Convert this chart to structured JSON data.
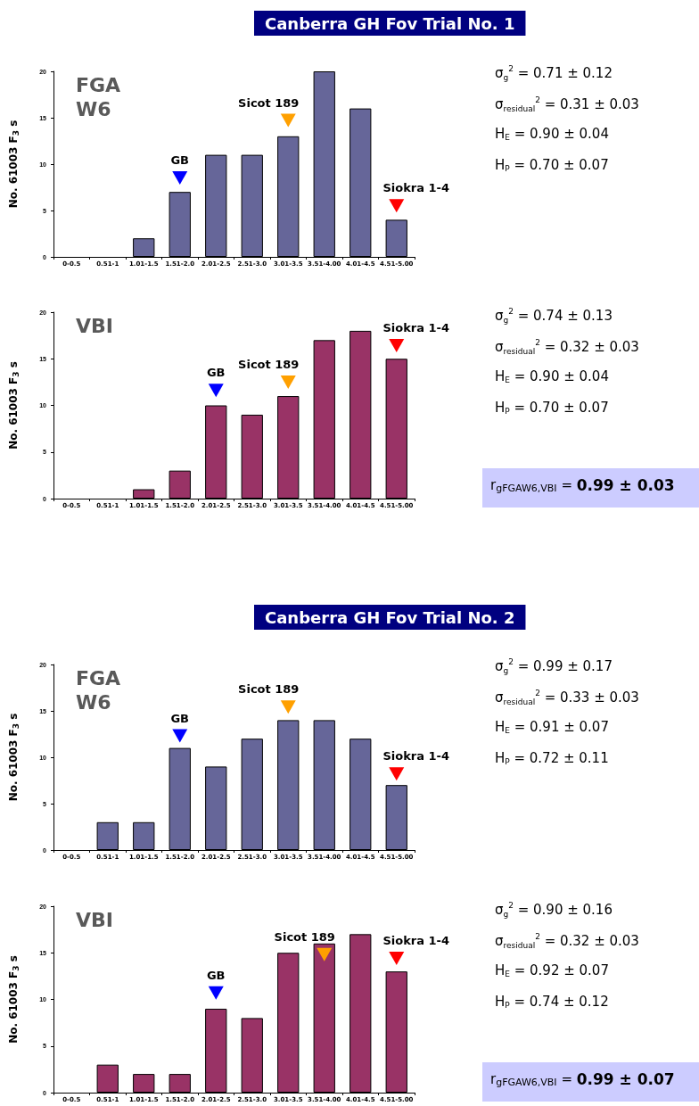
{
  "chart_data": [
    {
      "type": "bar",
      "title": "Canberra GH Fov Trial No. 1",
      "ylabel": "No. 61003 F$_{3}$ s",
      "categories": [
        "0-0.5",
        "0.51-1",
        "1.01-1.5",
        "1.51-2.0",
        "2.01-2.5",
        "2.51-3.0",
        "3.01-3.5",
        "3.51-4.00",
        "4.01-4.5",
        "4.51-5.00"
      ],
      "series": [
        {
          "name": "FGA W6",
          "color": "#666699",
          "values": [
            0,
            0,
            2,
            7,
            11,
            11,
            13,
            20,
            16,
            4
          ]
        }
      ],
      "ylim": [
        0,
        20
      ],
      "yticks": [
        0,
        5,
        10,
        15,
        20
      ],
      "grid": false,
      "legend": false,
      "annotations": [
        {
          "text": "GB",
          "x": "1.51-2.0",
          "y": 8.5
        },
        {
          "text": "Sicot 189",
          "x": "3.01-3.5",
          "y": 14.7
        },
        {
          "text": "Siokra 1-4",
          "x": "4.51-5.00",
          "y": 5.5
        },
        "σ$_{g}$$^{2}$ = 0.71 ± 0.12",
        "σ$_{residual}$$^{2}$ = 0.31 ± 0.03",
        "H$_{E}$ = 0.90 ± 0.04",
        "H$_{P}$ = 0.70 ± 0.07"
      ]
    },
    {
      "type": "bar",
      "ylabel": "No. 61003 F$_{3}$ s",
      "categories": [
        "0-0.5",
        "0.51-1",
        "1.01-1.5",
        "1.51-2.0",
        "2.01-2.5",
        "2.51-3.0",
        "3.01-3.5",
        "3.51-4.00",
        "4.01-4.5",
        "4.51-5.00"
      ],
      "series": [
        {
          "name": "VBI",
          "color": "#993366",
          "values": [
            0,
            0,
            1,
            3,
            10,
            9,
            11,
            17,
            18,
            15
          ]
        }
      ],
      "ylim": [
        0,
        20
      ],
      "yticks": [
        0,
        5,
        10,
        15,
        20
      ],
      "grid": false,
      "legend": false,
      "annotations": [
        {
          "text": "GB",
          "x": "2.01-2.5",
          "y": 11.6
        },
        {
          "text": "Sicot 189",
          "x": "3.01-3.5",
          "y": 12.5
        },
        {
          "text": "Siokra 1-4",
          "x": "4.51-5.00",
          "y": 16.4
        },
        "σ$_{g}$$^{2}$ = 0.74 ± 0.13",
        "σ$_{residual}$$^{2}$ = 0.32 ± 0.03",
        "H$_{E}$ = 0.90 ± 0.04",
        "H$_{P}$ = 0.70 ± 0.07",
        "r$_{gFGAW6,VBI}$ = 0.99 ± 0.03"
      ]
    },
    {
      "type": "bar",
      "title": "Canberra GH Fov Trial No. 2",
      "ylabel": "No. 61003 F$_{3}$ s",
      "categories": [
        "0-0.5",
        "0.51-1",
        "1.01-1.5",
        "1.51-2.0",
        "2.01-2.5",
        "2.51-3.0",
        "3.01-3.5",
        "3.51-4.00",
        "4.01-4.5",
        "4.51-5.00"
      ],
      "series": [
        {
          "name": "FGA W6",
          "color": "#666699",
          "values": [
            0,
            3,
            3,
            11,
            9,
            12,
            14,
            14,
            12,
            7
          ]
        }
      ],
      "ylim": [
        0,
        20
      ],
      "yticks": [
        0,
        5,
        10,
        15,
        20
      ],
      "grid": false,
      "legend": false,
      "annotations": [
        {
          "text": "GB",
          "x": "1.51-2.0",
          "y": 12.3
        },
        {
          "text": "Sicot 189",
          "x": "3.01-3.5",
          "y": 15.4
        },
        {
          "text": "Siokra 1-4",
          "x": "4.51-5.00",
          "y": 8.2
        },
        "σ$_{g}$$^{2}$ = 0.99 ± 0.17",
        "σ$_{residual}$$^{2}$ = 0.33 ± 0.03",
        "H$_{E}$ = 0.91 ± 0.07",
        "H$_{P}$ = 0.72 ± 0.11"
      ]
    },
    {
      "type": "bar",
      "ylabel": "No. 61003 F$_{3}$ s",
      "categories": [
        "0-0.5",
        "0.51-1",
        "1.01-1.5",
        "1.51-2.0",
        "2.01-2.5",
        "2.51-3.0",
        "3.01-3.5",
        "3.51-4.00",
        "4.01-4.5",
        "4.51-5.00"
      ],
      "series": [
        {
          "name": "VBI",
          "color": "#993366",
          "values": [
            0,
            3,
            2,
            2,
            9,
            8,
            15,
            16,
            17,
            13
          ]
        }
      ],
      "ylim": [
        0,
        20
      ],
      "yticks": [
        0,
        5,
        10,
        15,
        20
      ],
      "grid": false,
      "legend": false,
      "annotations": [
        {
          "text": "GB",
          "x": "2.01-2.5",
          "y": 10.7
        },
        {
          "text": "Sicot 189",
          "x": "3.51-4.00",
          "y": 14.8
        },
        {
          "text": "Siokra 1-4",
          "x": "4.51-5.00",
          "y": 14.4
        },
        "σ$_{g}$$^{2}$ = 0.90 ± 0.16",
        "σ$_{residual}$$^{2}$ = 0.32 ± 0.03",
        "H$_{E}$ = 0.92 ± 0.07",
        "H$_{P}$ = 0.74 ± 0.12",
        "r$_{gFGAW6,VBI}$ = 0.99 ± 0.07"
      ]
    }
  ]
}
